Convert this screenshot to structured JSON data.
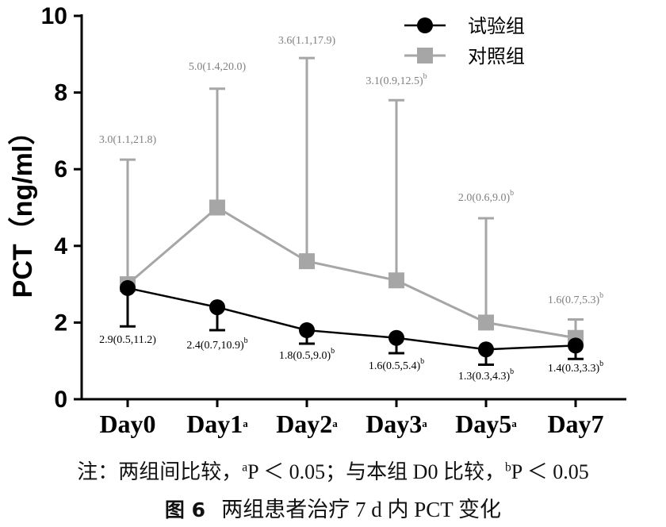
{
  "chart_data": {
    "type": "line",
    "ylabel": "PCT（ng/ml）",
    "ylim": [
      0,
      10
    ],
    "yticks": [
      "0",
      "2",
      "4",
      "6",
      "8",
      "10"
    ],
    "categories": [
      {
        "label": "Day0",
        "sup": ""
      },
      {
        "label": "Day1",
        "sup": "a"
      },
      {
        "label": "Day2",
        "sup": "a"
      },
      {
        "label": "Day3",
        "sup": "a"
      },
      {
        "label": "Day5",
        "sup": "a"
      },
      {
        "label": "Day7",
        "sup": ""
      }
    ],
    "legend_position": "top-right",
    "series": [
      {
        "name": "试验组",
        "marker": "circle",
        "color": "#000000",
        "values": [
          2.9,
          2.4,
          1.8,
          1.6,
          1.3,
          1.4
        ],
        "err_low": [
          1.9,
          1.8,
          1.45,
          1.2,
          0.9,
          1.05
        ],
        "err_high": [
          2.9,
          2.4,
          1.8,
          1.6,
          1.3,
          1.4
        ],
        "labels": [
          {
            "text": "2.9(0.5,11.2)",
            "sup": ""
          },
          {
            "text": "2.4(0.7,10.9)",
            "sup": "b"
          },
          {
            "text": "1.8(0.5,9.0)",
            "sup": "b"
          },
          {
            "text": "1.6(0.5,5.4)",
            "sup": "b"
          },
          {
            "text": "1.3(0.3,4.3)",
            "sup": "b"
          },
          {
            "text": "1.4(0.3,3.3)",
            "sup": "b"
          }
        ]
      },
      {
        "name": "对照组",
        "marker": "square",
        "color": "#a6a6a6",
        "values": [
          3.0,
          5.0,
          3.6,
          3.1,
          2.0,
          1.6
        ],
        "err_low": [
          3.0,
          5.0,
          3.6,
          3.1,
          2.0,
          1.6
        ],
        "err_high": [
          6.25,
          8.1,
          8.9,
          7.8,
          4.72,
          2.08
        ],
        "labels": [
          {
            "text": "3.0(1.1,21.8)",
            "sup": ""
          },
          {
            "text": "5.0(1.4,20.0)",
            "sup": ""
          },
          {
            "text": "3.6(1.1,17.9)",
            "sup": ""
          },
          {
            "text": "3.1(0.9,12.5)",
            "sup": "b"
          },
          {
            "text": "2.0(0.6,9.0)",
            "sup": "b"
          },
          {
            "text": "1.6(0.7,5.3)",
            "sup": "b"
          }
        ]
      }
    ]
  },
  "note": {
    "prefix": "注：两组间比较，",
    "sup_a": "a",
    "stat_a": "P ＜ 0.05；与本组 D0 比较，",
    "sup_b": "b",
    "stat_b": "P ＜ 0.05"
  },
  "caption": {
    "fig": "图 6",
    "text": "两组患者治疗 7 d 内 PCT 变化"
  }
}
